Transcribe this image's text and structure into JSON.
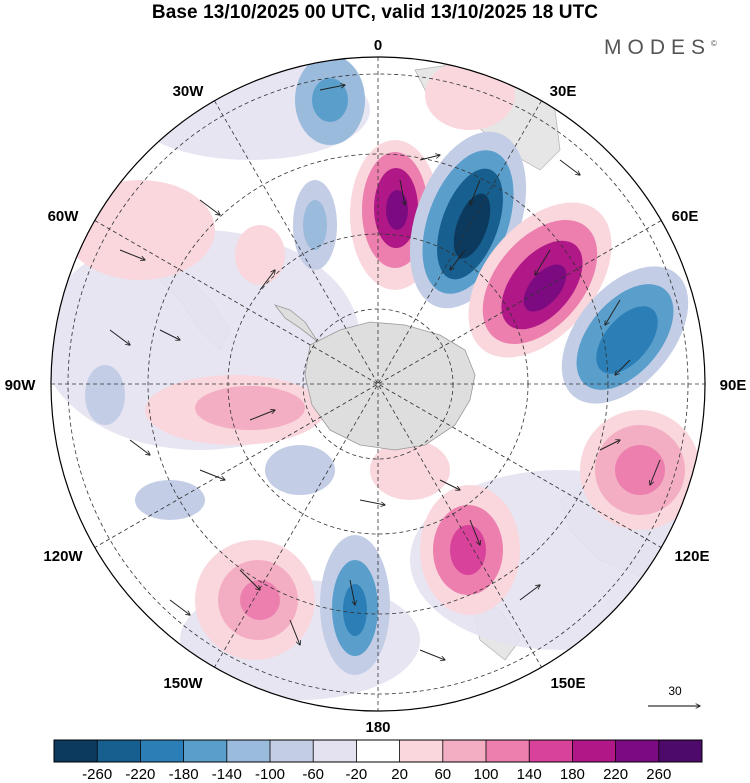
{
  "title": "Base 13/10/2025 00 UTC, valid 13/10/2025 18 UTC",
  "brand": "MODES",
  "brand_mark": "©",
  "map": {
    "projection": "south polar stereographic",
    "longitude_labels": {
      "lon0": "0",
      "lon30e": "30E",
      "lon60e": "60E",
      "lon90e": "90E",
      "lon120e": "120E",
      "lon150e": "150E",
      "lon180": "180",
      "lon150w": "150W",
      "lon120w": "120W",
      "lon90w": "90W",
      "lon60w": "60W",
      "lon30w": "30W"
    },
    "vector_reference": {
      "label": "30",
      "value": 30
    },
    "colors": {
      "land": "#dcdcdc",
      "coast": "#9a9a9a",
      "grid": "#333333"
    }
  },
  "colorbar": {
    "labels": [
      "-260",
      "-220",
      "-180",
      "-140",
      "-100",
      "-60",
      "-20",
      "20",
      "60",
      "100",
      "140",
      "180",
      "220",
      "260"
    ],
    "colors": [
      "#0c3a5e",
      "#175f8f",
      "#2b7fb6",
      "#5a9fcc",
      "#9bbbdc",
      "#c4cde6",
      "#e4e2f1",
      "#ffffff",
      "#f9d7dd",
      "#f4aec3",
      "#ec7fae",
      "#d9429b",
      "#b01888",
      "#7c0b82",
      "#4d0a6b"
    ]
  }
}
